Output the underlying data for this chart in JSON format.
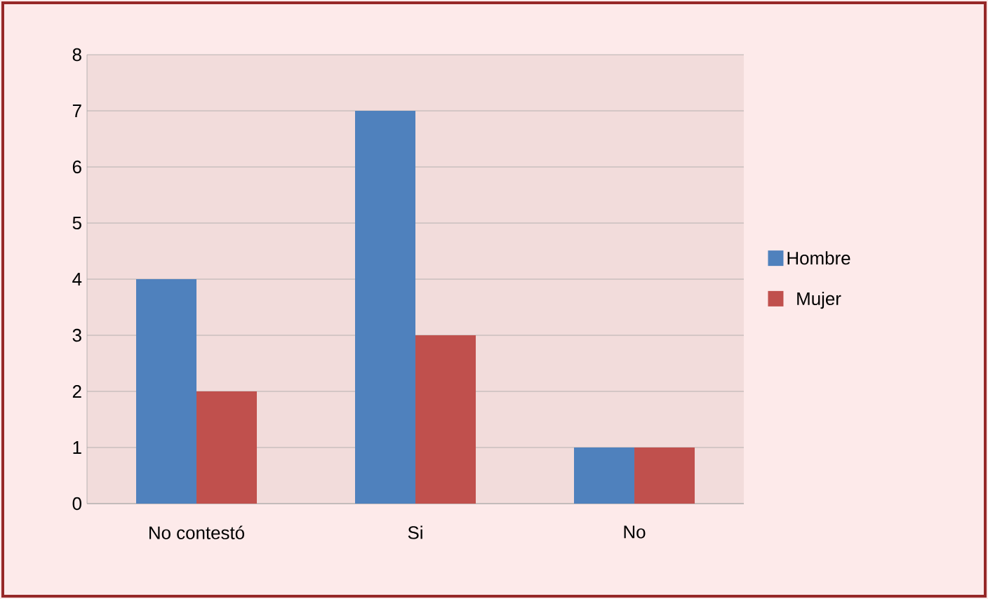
{
  "chart_data": {
    "type": "bar",
    "categories": [
      "No contestó",
      "Si",
      "No"
    ],
    "series": [
      {
        "name": "Hombre",
        "color": "#4f81bd",
        "values": [
          4,
          7,
          1
        ]
      },
      {
        "name": "Mujer",
        "color": "#c0504d",
        "values": [
          2,
          3,
          1
        ]
      }
    ],
    "ylim": [
      0,
      8
    ],
    "yticks": [
      0,
      1,
      2,
      3,
      4,
      5,
      6,
      7,
      8
    ],
    "grid": "y",
    "legend": "right"
  }
}
